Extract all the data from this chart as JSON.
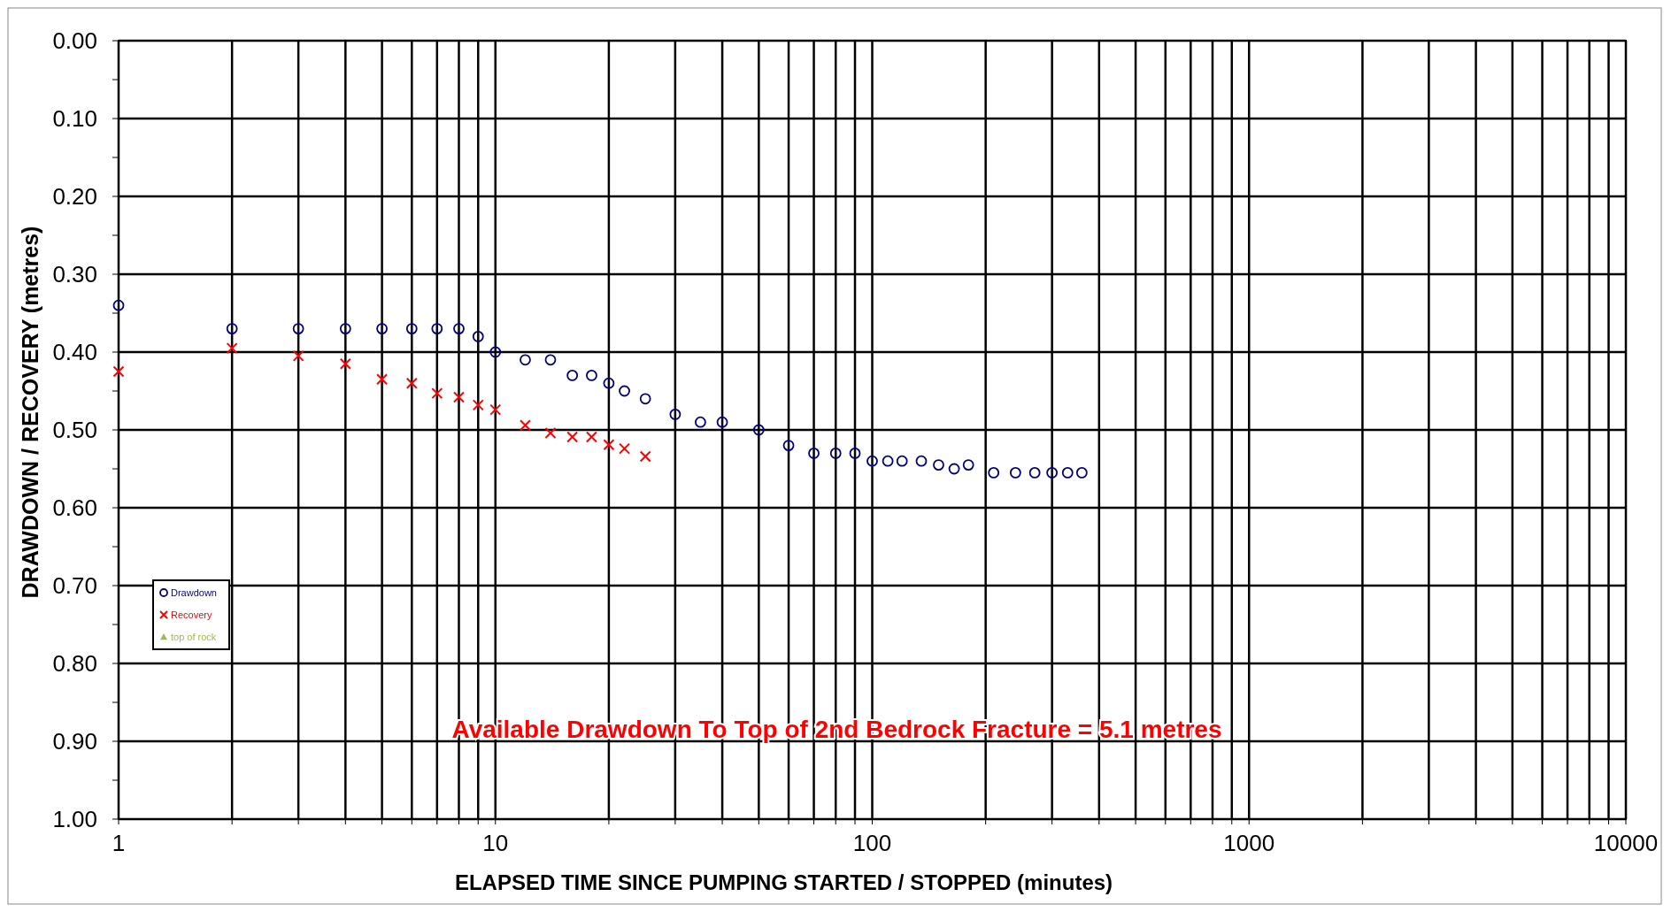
{
  "chart_data": {
    "type": "scatter",
    "xlabel": "ELAPSED TIME SINCE PUMPING STARTED / STOPPED (minutes)",
    "ylabel": "DRAWDOWN / RECOVERY (metres)",
    "log": "x",
    "grid": true,
    "legend": "left",
    "xlim": [
      1,
      10000
    ],
    "ylim": [
      1,
      0
    ],
    "xticks": [
      1,
      {
        "value": 2,
        "label": null
      },
      {
        "value": 3,
        "label": null
      },
      {
        "value": 4,
        "label": null
      },
      {
        "value": 5,
        "label": null
      },
      {
        "value": 6,
        "label": null
      },
      {
        "value": 7,
        "label": null
      },
      {
        "value": 8,
        "label": null
      },
      {
        "value": 9,
        "label": null
      },
      10,
      {
        "value": 20,
        "label": null
      },
      {
        "value": 30,
        "label": null
      },
      {
        "value": 40,
        "label": null
      },
      {
        "value": 50,
        "label": null
      },
      {
        "value": 60,
        "label": null
      },
      {
        "value": 70,
        "label": null
      },
      {
        "value": 80,
        "label": null
      },
      {
        "value": 90,
        "label": null
      },
      100,
      {
        "value": 200,
        "label": null
      },
      {
        "value": 300,
        "label": null
      },
      {
        "value": 400,
        "label": null
      },
      {
        "value": 500,
        "label": null
      },
      {
        "value": 600,
        "label": null
      },
      {
        "value": 700,
        "label": null
      },
      {
        "value": 800,
        "label": null
      },
      {
        "value": 900,
        "label": null
      },
      1000,
      {
        "value": 2000,
        "label": null
      },
      {
        "value": 3000,
        "label": null
      },
      {
        "value": 4000,
        "label": null
      },
      {
        "value": 5000,
        "label": null
      },
      {
        "value": 6000,
        "label": null
      },
      {
        "value": 7000,
        "label": null
      },
      {
        "value": 8000,
        "label": null
      },
      {
        "value": 9000,
        "label": null
      },
      10000
    ],
    "yticks": [
      {
        "value": 0,
        "label": "0.00"
      },
      {
        "value": 0.05,
        "label": null
      },
      {
        "value": 0.1,
        "label": "0.10"
      },
      {
        "value": 0.15,
        "label": null
      },
      {
        "value": 0.2,
        "label": "0.20"
      },
      {
        "value": 0.25,
        "label": null
      },
      {
        "value": 0.3,
        "label": "0.30"
      },
      {
        "value": 0.35,
        "label": null
      },
      {
        "value": 0.4,
        "label": "0.40"
      },
      {
        "value": 0.45,
        "label": null
      },
      {
        "value": 0.5,
        "label": "0.50"
      },
      {
        "value": 0.55,
        "label": null
      },
      {
        "value": 0.6,
        "label": "0.60"
      },
      {
        "value": 0.65,
        "label": null
      },
      {
        "value": 0.7,
        "label": "0.70"
      },
      {
        "value": 0.75,
        "label": null
      },
      {
        "value": 0.8,
        "label": "0.80"
      },
      {
        "value": 0.85,
        "label": null
      },
      {
        "value": 0.9,
        "label": "0.90"
      },
      {
        "value": 0.95,
        "label": null
      },
      {
        "value": 1,
        "label": "1.00"
      }
    ],
    "annotations": [
      "Available Drawdown To Top of 2nd Bedrock Fracture = 5.1 metres"
    ],
    "series": [
      {
        "name": "Drawdown",
        "color": "#000080",
        "marker": "circle",
        "x": [
          1,
          2,
          3,
          4,
          5,
          6,
          7,
          8,
          9,
          10,
          12,
          14,
          16,
          18,
          20,
          22,
          25,
          30,
          35,
          40,
          50,
          60,
          70,
          80,
          90,
          100,
          110,
          120,
          135,
          150,
          165,
          180,
          210,
          240,
          270,
          300,
          330,
          360
        ],
        "values": [
          0.34,
          0.37,
          0.37,
          0.37,
          0.37,
          0.37,
          0.37,
          0.37,
          0.38,
          0.4,
          0.41,
          0.41,
          0.43,
          0.43,
          0.44,
          0.45,
          0.46,
          0.48,
          0.49,
          0.49,
          0.5,
          0.52,
          0.53,
          0.53,
          0.53,
          0.54,
          0.54,
          0.54,
          0.54,
          0.545,
          0.55,
          0.545,
          0.555,
          0.555,
          0.555,
          0.555,
          0.555,
          0.555
        ]
      },
      {
        "name": "Recovery",
        "color": "#ff0000",
        "marker": "cross",
        "x": [
          1,
          2,
          3,
          4,
          5,
          6,
          7,
          8,
          9,
          10,
          12,
          14,
          16,
          18,
          20,
          22,
          25
        ],
        "values": [
          0.425,
          0.395,
          0.405,
          0.415,
          0.435,
          0.44,
          0.453,
          0.458,
          0.468,
          0.474,
          0.494,
          0.504,
          0.509,
          0.509,
          0.519,
          0.524,
          0.534
        ]
      },
      {
        "name": "top of rock",
        "color": "#9bbb59",
        "marker": "triangle"
      }
    ]
  }
}
